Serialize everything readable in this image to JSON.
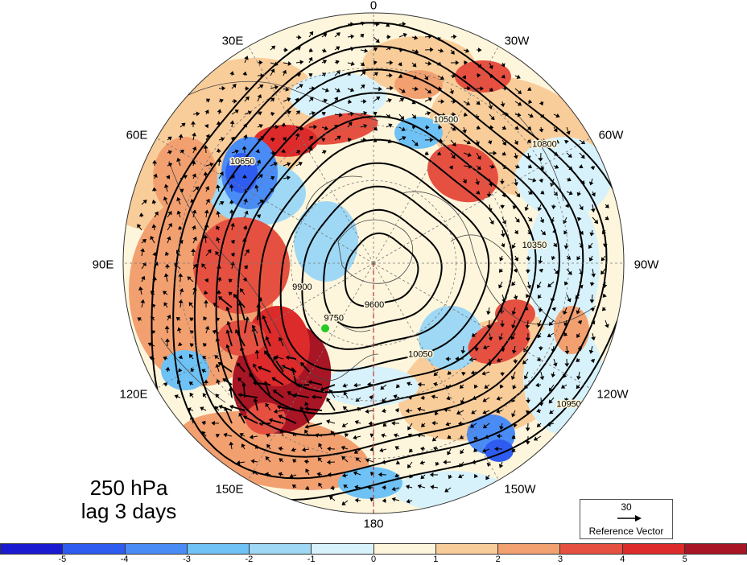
{
  "panel": {
    "level": "250 hPa",
    "lag": "lag 3 days"
  },
  "longitude_labels": [
    "0",
    "30W",
    "60W",
    "90W",
    "120W",
    "150W",
    "180",
    "150E",
    "120E",
    "90E",
    "60E",
    "30E"
  ],
  "height_contours": {
    "levels": [
      9600,
      9750,
      9900,
      10050,
      10200,
      10350,
      10500,
      10650,
      10800,
      10950
    ],
    "visible_labels": [
      "9600",
      "9750",
      "9900",
      "10050",
      "10350",
      "10500",
      "10650",
      "10800",
      "10950"
    ]
  },
  "reference_vector": {
    "magnitude": "30",
    "label": "Reference Vector"
  },
  "colorbar": {
    "tick_labels": [
      "-5",
      "-4",
      "-3",
      "-2",
      "-1",
      "0",
      "1",
      "2",
      "3",
      "4",
      "5"
    ],
    "colors": [
      "#1a1ad0",
      "#2f5cf0",
      "#4a8cf5",
      "#6ec2f5",
      "#9ed8f5",
      "#d8f2fb",
      "#fef6dc",
      "#f9cd9a",
      "#f2a070",
      "#e65040",
      "#dd2a2a",
      "#a81524"
    ]
  },
  "marker": {
    "color": "#22cc22"
  }
}
